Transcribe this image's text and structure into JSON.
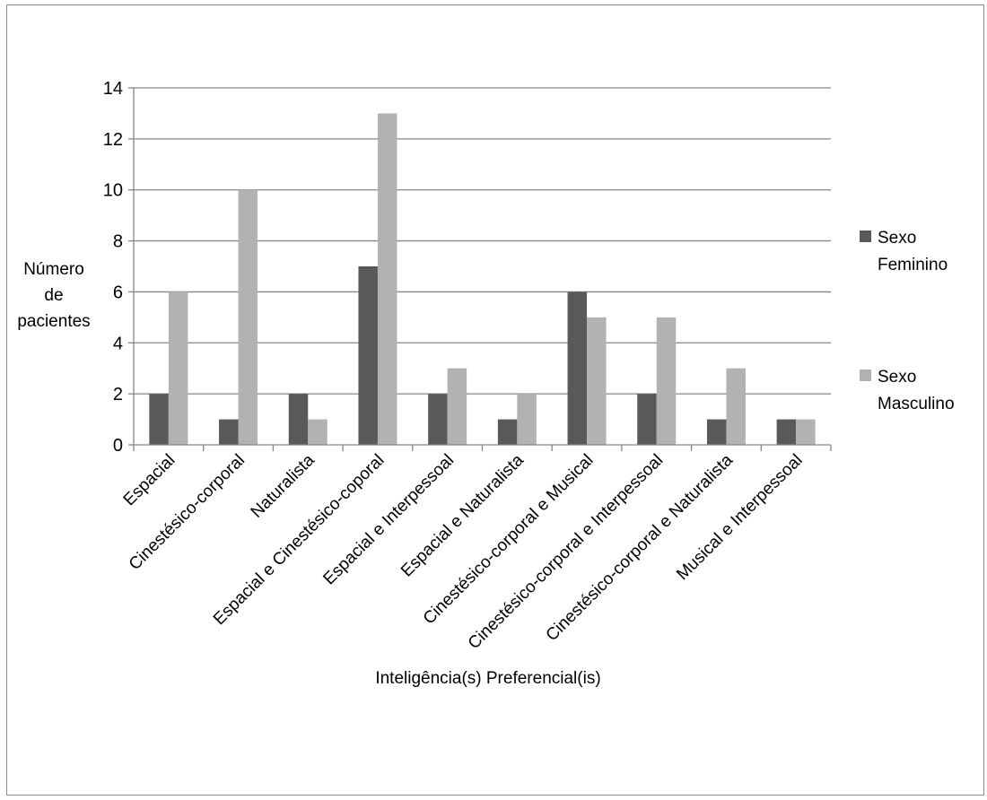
{
  "chart_data": {
    "type": "bar",
    "title": "",
    "xlabel": "Inteligência(s) Preferencial(is)",
    "ylabel": "Número de pacientes",
    "ylabel_lines": [
      "Número",
      "de",
      "pacientes"
    ],
    "ylim": [
      0,
      14
    ],
    "yticks": [
      0,
      2,
      4,
      6,
      8,
      10,
      12,
      14
    ],
    "grid": true,
    "legend_position": "right",
    "categories": [
      "Espacial",
      "Cinestésico-corporal",
      "Naturalista",
      "Espacial e Cinestésico-coporal",
      "Espacial e Interpessoal",
      "Espacial e Naturalista",
      "Cinestésico-corporal e Musical",
      "Cinestésico-corporal e Interpessoal",
      "Cinestésico-corporal e Naturalista",
      "Musical e Interpessoal"
    ],
    "series": [
      {
        "name": "Sexo Feminino",
        "name_lines": [
          "Sexo",
          "Feminino"
        ],
        "color": "#595959",
        "values": [
          2,
          1,
          2,
          7,
          2,
          1,
          6,
          2,
          1,
          1
        ]
      },
      {
        "name": "Sexo Masculino",
        "name_lines": [
          "Sexo",
          "Masculino"
        ],
        "color": "#b2b2b2",
        "values": [
          6,
          10,
          1,
          13,
          3,
          2,
          5,
          5,
          3,
          1
        ]
      }
    ]
  }
}
